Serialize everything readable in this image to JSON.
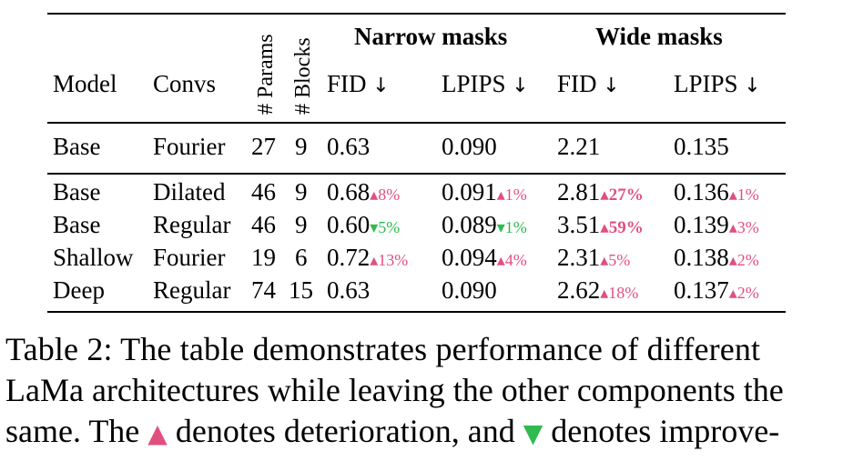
{
  "table": {
    "group_headers": {
      "narrow": "Narrow masks",
      "wide": "Wide masks"
    },
    "columns": {
      "model": "Model",
      "convs": "Convs",
      "params": "# Params",
      "blocks": "# Blocks",
      "narrow_fid": "FID",
      "narrow_lpips": "LPIPS",
      "wide_fid": "FID",
      "wide_lpips": "LPIPS",
      "lower_better_arrow": "↓"
    },
    "baseline": {
      "model": "Base",
      "convs": "Fourier",
      "params": "27",
      "blocks": "9",
      "narrow_fid": "0.63",
      "narrow_lpips": "0.090",
      "wide_fid": "2.21",
      "wide_lpips": "0.135"
    },
    "rows": [
      {
        "model": "Base",
        "convs": "Dilated",
        "params": "46",
        "blocks": "9",
        "narrow_fid": "0.68",
        "narrow_fid_delta": "▴8%",
        "narrow_lpips": "0.091",
        "narrow_lpips_delta": "▴1%",
        "wide_fid": "2.81",
        "wide_fid_delta": "▴27%",
        "wide_lpips": "0.136",
        "wide_lpips_delta": "▴1%"
      },
      {
        "model": "Base",
        "convs": "Regular",
        "params": "46",
        "blocks": "9",
        "narrow_fid": "0.60",
        "narrow_fid_delta": "▾5%",
        "narrow_lpips": "0.089",
        "narrow_lpips_delta": "▾1%",
        "wide_fid": "3.51",
        "wide_fid_delta": "▴59%",
        "wide_lpips": "0.139",
        "wide_lpips_delta": "▴3%"
      },
      {
        "model": "Shallow",
        "convs": "Fourier",
        "params": "19",
        "blocks": "6",
        "narrow_fid": "0.72",
        "narrow_fid_delta": "▴13%",
        "narrow_lpips": "0.094",
        "narrow_lpips_delta": "▴4%",
        "wide_fid": "2.31",
        "wide_fid_delta": "▴5%",
        "wide_lpips": "0.138",
        "wide_lpips_delta": "▴2%"
      },
      {
        "model": "Deep",
        "convs": "Regular",
        "params": "74",
        "blocks": "15",
        "narrow_fid": "0.63",
        "narrow_fid_delta": "",
        "narrow_lpips": "0.090",
        "narrow_lpips_delta": "",
        "wide_fid": "2.62",
        "wide_fid_delta": "▴18%",
        "wide_lpips": "0.137",
        "wide_lpips_delta": "▴2%"
      }
    ]
  },
  "caption": {
    "line1": "Table 2: The table demonstrates performance of different",
    "line2": "LaMa architectures while leaving the other components the",
    "line3_a": "same. The ",
    "line3_up": "▲",
    "line3_b": " denotes deterioration, and ",
    "line3_down": "▼",
    "line3_c": " denotes improve-"
  },
  "colors": {
    "deterioration": "#e0507e",
    "improvement": "#2fba4f"
  }
}
